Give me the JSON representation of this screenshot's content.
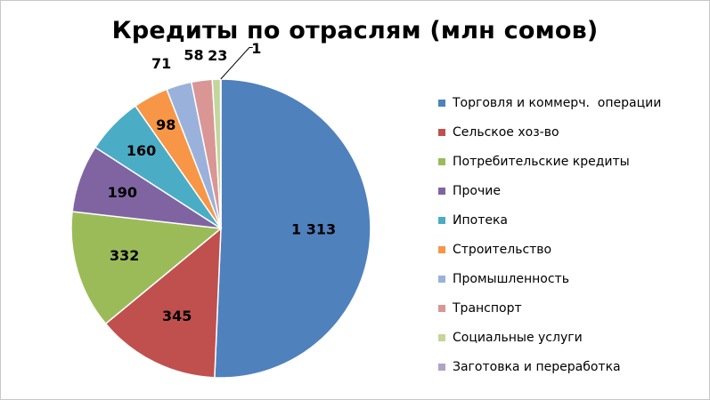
{
  "chart_data": {
    "type": "pie",
    "title": "Кредиты по отраслям (млн сомов)",
    "categories": [
      "Торговля и коммерч.  операции",
      "Сельское хоз-во",
      "Потребительские кредиты",
      "Прочие",
      "Ипотека",
      "Строительство",
      "Промышленность",
      "Транспорт",
      "Социальные услуги",
      "Заготовка и переработка"
    ],
    "values": [
      1313,
      345,
      332,
      190,
      160,
      98,
      71,
      58,
      23,
      1
    ],
    "value_labels": [
      "1 313",
      "345",
      "332",
      "190",
      "160",
      "98",
      "71",
      "58",
      "23",
      "1"
    ],
    "colors": [
      "#4F81BD",
      "#C0504D",
      "#9BBB59",
      "#8064A2",
      "#4BACC6",
      "#F79646",
      "#9AB2DB",
      "#D99694",
      "#C3D69B",
      "#B3A2C7"
    ],
    "legend": "right",
    "start": "12 o'clock, clockwise"
  }
}
